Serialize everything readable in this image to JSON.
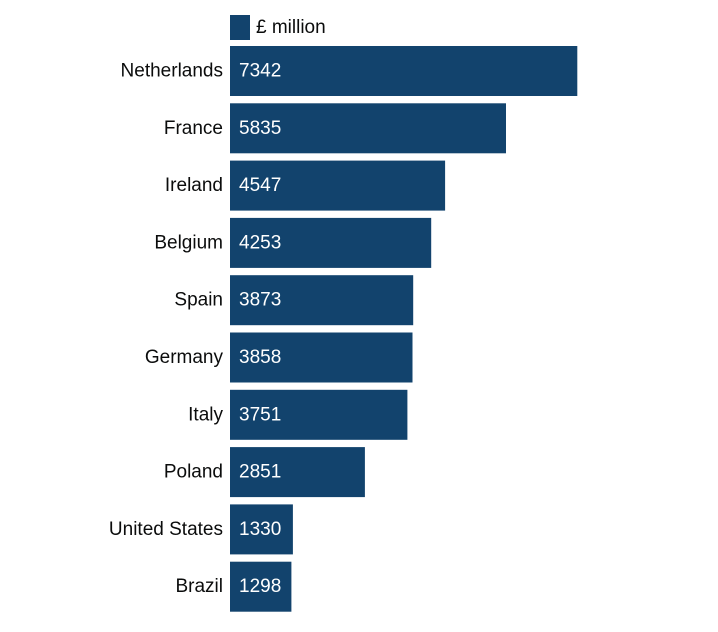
{
  "chart_data": {
    "type": "bar",
    "orientation": "horizontal",
    "categories": [
      "Netherlands",
      "France",
      "Ireland",
      "Belgium",
      "Spain",
      "Germany",
      "Italy",
      "Poland",
      "United States",
      "Brazil"
    ],
    "series": [
      {
        "name": "£ million",
        "values": [
          7342,
          5835,
          4547,
          4253,
          3873,
          3858,
          3751,
          2851,
          1330,
          1298
        ]
      }
    ],
    "xlim": [
      0,
      10000
    ],
    "grid": false,
    "legend": "top-left",
    "data_labels": "inside-bar-start",
    "colors": {
      "bar": "#12436d",
      "bar_label": "#ffffff",
      "text": "#0b0c0c"
    }
  }
}
